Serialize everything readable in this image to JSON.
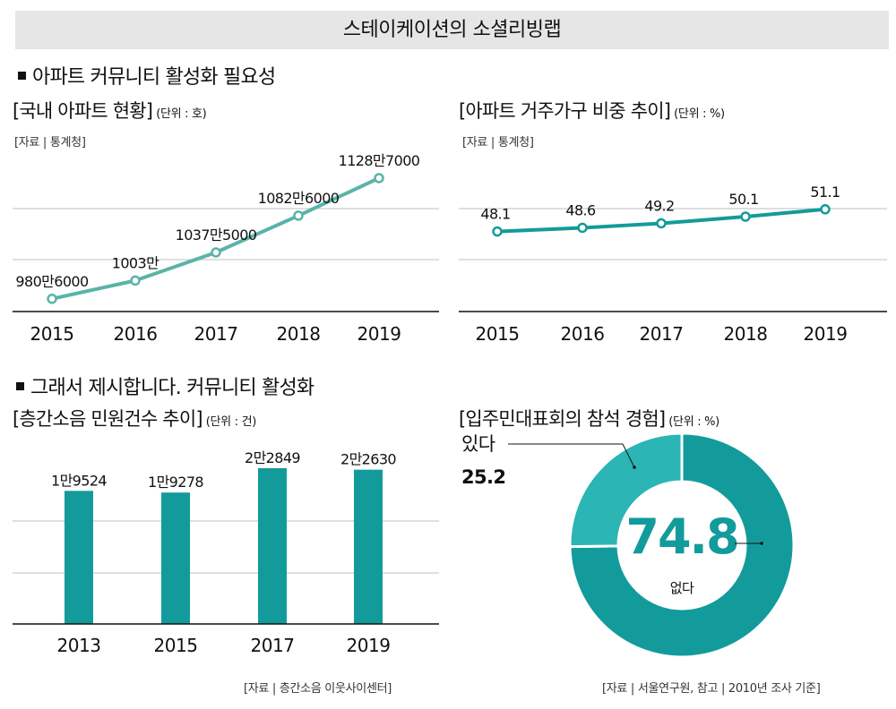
{
  "header": {
    "title": "스테이케이션의 소셜리빙랩"
  },
  "sections": {
    "need": "아파트 커뮤니티 활성화 필요성",
    "proposal": "그래서 제시합니다. 커뮤니티 활성화"
  },
  "colors": {
    "teal": "#139b9b",
    "teal_light": "#5ab3a8",
    "teal_pale": "#2bb5b5",
    "grid": "#bfbfbf",
    "axis": "#111111"
  },
  "chart_data": [
    {
      "type": "line",
      "title": "[국내 아파트 현황]",
      "unit": "(단위 : 호)",
      "source": "[자료 | 통계청]",
      "x": [
        "2015",
        "2016",
        "2017",
        "2018",
        "2019"
      ],
      "values": [
        9806000,
        10030000,
        10375000,
        10826000,
        11287000
      ],
      "labels": [
        "980만6000",
        "1003만",
        "1037만5000",
        "1082만6000",
        "1128만7000"
      ],
      "ylim": [
        9650000,
        11550000
      ],
      "grid": true
    },
    {
      "type": "line",
      "title": "[아파트 거주가구 비중 추이]",
      "unit": "(단위 : %)",
      "source": "[자료 | 통계청]",
      "x": [
        "2015",
        "2016",
        "2017",
        "2018",
        "2019"
      ],
      "values": [
        48.1,
        48.6,
        49.2,
        50.1,
        51.1
      ],
      "labels": [
        "48.1",
        "48.6",
        "49.2",
        "50.1",
        "51.1"
      ],
      "ylim": [
        37.3,
        58.2
      ],
      "grid": true
    },
    {
      "type": "bar",
      "title": "[층간소음 민원건수 추이]",
      "unit": "(단위 : 건)",
      "source": "[자료 | 층간소음 이웃사이센터]",
      "categories": [
        "2013",
        "2015",
        "2017",
        "2019"
      ],
      "values": [
        19524,
        19278,
        22849,
        22630
      ],
      "labels": [
        "1만9524",
        "1만9278",
        "2만2849",
        "2만2630"
      ],
      "ylim": [
        0,
        30000
      ],
      "grid": true
    },
    {
      "type": "pie",
      "title": "[입주민대표회의 참석 경험]",
      "unit": "(단위 : %)",
      "source": "[자료 | 서울연구원, 참고 | 2010년 조사 기준]",
      "slices": [
        {
          "name": "없다",
          "value": 74.8,
          "label": "74.8"
        },
        {
          "name": "있다",
          "value": 25.2,
          "label": "25.2"
        }
      ]
    }
  ]
}
